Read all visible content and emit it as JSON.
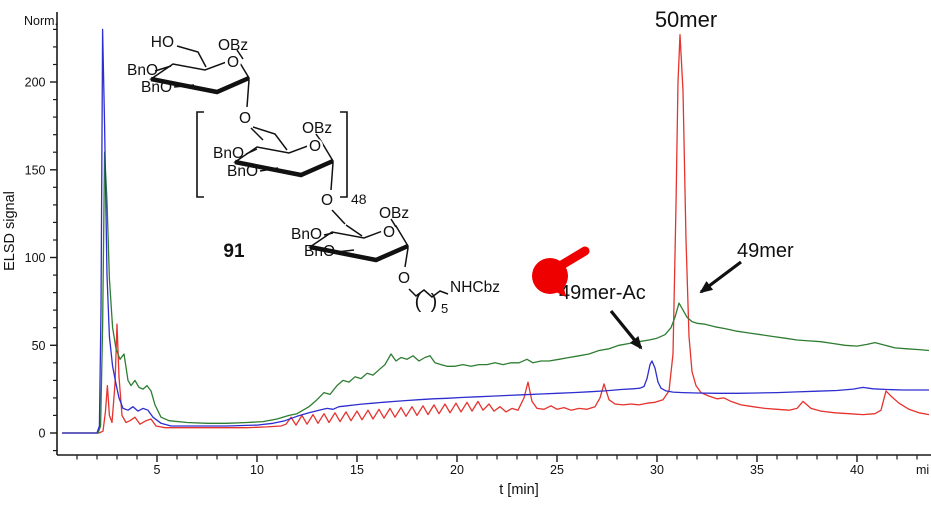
{
  "axes": {
    "norm_label": "Norm.",
    "y_label": "ELSD signal",
    "x_label": "t [min]",
    "x_unit": "mi",
    "y_ticks": [
      "200",
      "150",
      "100",
      "50",
      "0"
    ],
    "x_ticks": [
      "5",
      "10",
      "15",
      "20",
      "25",
      "30",
      "35",
      "40"
    ]
  },
  "annotations": {
    "peak_main": "50mer",
    "peak_shoulder": "49mer",
    "peak_ac": "49mer-Ac"
  },
  "structure": {
    "compound_number": "91",
    "repeat_count": "48",
    "chain_count": "5",
    "paren_open": "(",
    "paren_close": ")",
    "labels": {
      "ho": "HO",
      "r1_obz": "OBz",
      "r1_o": "O",
      "r1_bno_a": "BnO",
      "r1_bno_b": "BnO",
      "l1_o": "O",
      "r2_obz": "OBz",
      "r2_o": "O",
      "r2_bno_a": "BnO",
      "r2_bno_b": "BnO",
      "l2_o": "O",
      "r3_obz": "OBz",
      "r3_o": "O",
      "r3_bno_a": "BnO",
      "r3_bno_b": "BnO",
      "l3_o": "O",
      "nhcbz": "NHCbz"
    }
  },
  "colors": {
    "red": "#e5332e",
    "green": "#2e7d32",
    "blue": "#2d2dd0",
    "axis": "#1a1a1a",
    "norm": "#3a5a8c",
    "marker_red": "#ee0000"
  },
  "chart_data": {
    "type": "line",
    "title": "",
    "xlabel": "t [min]",
    "ylabel": "ELSD signal",
    "xlim": [
      0,
      43.7
    ],
    "ylim": [
      -10,
      245
    ],
    "grid": false,
    "legend": null,
    "x_tick_step_minor": 1,
    "y_tick_step_minor": 10,
    "series": [
      {
        "name": "trace-red",
        "color": "#e5332e",
        "points": [
          [
            0.25,
            0
          ],
          [
            1.5,
            0
          ],
          [
            2.1,
            0
          ],
          [
            2.3,
            1
          ],
          [
            2.42,
            12
          ],
          [
            2.52,
            27
          ],
          [
            2.62,
            10
          ],
          [
            2.75,
            6
          ],
          [
            2.9,
            28
          ],
          [
            3.0,
            62
          ],
          [
            3.1,
            32
          ],
          [
            3.25,
            10
          ],
          [
            3.45,
            6
          ],
          [
            3.65,
            7
          ],
          [
            3.9,
            9
          ],
          [
            4.15,
            5
          ],
          [
            4.45,
            7
          ],
          [
            4.7,
            8
          ],
          [
            4.95,
            4
          ],
          [
            5.4,
            3
          ],
          [
            6.5,
            3
          ],
          [
            8,
            3
          ],
          [
            9.5,
            3
          ],
          [
            10.5,
            3.5
          ],
          [
            11.2,
            4
          ],
          [
            11.45,
            5
          ],
          [
            11.7,
            9
          ],
          [
            11.95,
            4.5
          ],
          [
            12.25,
            10
          ],
          [
            12.5,
            5
          ],
          [
            12.8,
            10.5
          ],
          [
            13.05,
            5.5
          ],
          [
            13.35,
            11
          ],
          [
            13.6,
            6
          ],
          [
            13.9,
            11.5
          ],
          [
            14.15,
            6.5
          ],
          [
            14.45,
            12
          ],
          [
            14.7,
            7
          ],
          [
            15.0,
            12.5
          ],
          [
            15.25,
            7.5
          ],
          [
            15.55,
            13
          ],
          [
            15.8,
            8
          ],
          [
            16.1,
            13.5
          ],
          [
            16.35,
            8.5
          ],
          [
            16.65,
            14
          ],
          [
            16.9,
            9
          ],
          [
            17.2,
            14.5
          ],
          [
            17.45,
            9.5
          ],
          [
            17.75,
            15
          ],
          [
            18.0,
            10
          ],
          [
            18.3,
            15.5
          ],
          [
            18.55,
            10.5
          ],
          [
            18.85,
            16
          ],
          [
            19.1,
            11
          ],
          [
            19.4,
            16.5
          ],
          [
            19.65,
            11.5
          ],
          [
            19.95,
            17
          ],
          [
            20.2,
            12
          ],
          [
            20.5,
            17.5
          ],
          [
            20.75,
            12.5
          ],
          [
            21.05,
            18
          ],
          [
            21.3,
            13
          ],
          [
            21.6,
            16.5
          ],
          [
            21.85,
            12.5
          ],
          [
            22.15,
            15
          ],
          [
            22.45,
            12
          ],
          [
            22.75,
            14
          ],
          [
            23.05,
            13
          ],
          [
            23.35,
            20
          ],
          [
            23.55,
            29
          ],
          [
            23.75,
            18
          ],
          [
            24.0,
            14
          ],
          [
            24.35,
            13.5
          ],
          [
            24.7,
            15.5
          ],
          [
            25.0,
            13.5
          ],
          [
            25.35,
            14.5
          ],
          [
            25.7,
            13
          ],
          [
            26.1,
            14
          ],
          [
            26.5,
            13.5
          ],
          [
            26.9,
            15
          ],
          [
            27.15,
            20
          ],
          [
            27.35,
            28
          ],
          [
            27.6,
            19
          ],
          [
            27.9,
            16.5
          ],
          [
            28.3,
            16
          ],
          [
            28.7,
            16.5
          ],
          [
            29.1,
            16
          ],
          [
            29.5,
            17
          ],
          [
            29.9,
            17.5
          ],
          [
            30.3,
            19
          ],
          [
            30.6,
            24
          ],
          [
            30.8,
            45
          ],
          [
            30.95,
            130
          ],
          [
            31.05,
            200
          ],
          [
            31.15,
            227
          ],
          [
            31.3,
            195
          ],
          [
            31.45,
            110
          ],
          [
            31.6,
            55
          ],
          [
            31.75,
            35
          ],
          [
            31.95,
            27
          ],
          [
            32.2,
            23
          ],
          [
            32.6,
            21
          ],
          [
            33.0,
            19.5
          ],
          [
            33.35,
            20
          ],
          [
            33.7,
            18
          ],
          [
            34.2,
            16
          ],
          [
            34.8,
            15
          ],
          [
            35.4,
            14
          ],
          [
            36.0,
            13.5
          ],
          [
            36.6,
            13
          ],
          [
            37.0,
            14
          ],
          [
            37.3,
            18
          ],
          [
            37.7,
            14
          ],
          [
            38.2,
            12.5
          ],
          [
            38.9,
            11.5
          ],
          [
            39.6,
            11
          ],
          [
            40.3,
            10.5
          ],
          [
            40.9,
            11
          ],
          [
            41.2,
            13
          ],
          [
            41.45,
            24
          ],
          [
            41.7,
            21
          ],
          [
            42.1,
            17
          ],
          [
            42.6,
            13.5
          ],
          [
            43.1,
            11.5
          ],
          [
            43.6,
            10.5
          ]
        ]
      },
      {
        "name": "trace-green",
        "color": "#2e7d32",
        "points": [
          [
            0.25,
            0
          ],
          [
            1.5,
            0
          ],
          [
            2.05,
            0
          ],
          [
            2.18,
            4
          ],
          [
            2.28,
            60
          ],
          [
            2.38,
            160
          ],
          [
            2.5,
            132
          ],
          [
            2.62,
            88
          ],
          [
            2.78,
            60
          ],
          [
            2.95,
            48
          ],
          [
            3.15,
            42
          ],
          [
            3.35,
            45
          ],
          [
            3.55,
            30
          ],
          [
            3.7,
            27
          ],
          [
            3.9,
            30
          ],
          [
            4.1,
            26
          ],
          [
            4.3,
            25
          ],
          [
            4.5,
            27
          ],
          [
            4.7,
            24
          ],
          [
            4.9,
            16
          ],
          [
            5.2,
            9
          ],
          [
            5.6,
            7
          ],
          [
            6.5,
            6
          ],
          [
            7.5,
            5.5
          ],
          [
            8.5,
            5.5
          ],
          [
            9.5,
            6
          ],
          [
            10.3,
            6.5
          ],
          [
            11.0,
            8
          ],
          [
            11.6,
            10
          ],
          [
            12.0,
            11
          ],
          [
            12.6,
            15
          ],
          [
            13.0,
            19
          ],
          [
            13.35,
            23
          ],
          [
            13.65,
            22
          ],
          [
            14.0,
            27
          ],
          [
            14.3,
            30
          ],
          [
            14.6,
            29
          ],
          [
            14.9,
            32
          ],
          [
            15.2,
            31
          ],
          [
            15.5,
            34
          ],
          [
            15.8,
            33
          ],
          [
            16.1,
            36
          ],
          [
            16.4,
            39
          ],
          [
            16.7,
            45
          ],
          [
            16.95,
            41
          ],
          [
            17.2,
            43
          ],
          [
            17.5,
            42
          ],
          [
            17.8,
            44
          ],
          [
            18.1,
            41
          ],
          [
            18.4,
            43
          ],
          [
            18.65,
            44
          ],
          [
            18.9,
            40
          ],
          [
            19.2,
            39
          ],
          [
            19.5,
            38
          ],
          [
            19.9,
            38
          ],
          [
            20.3,
            39
          ],
          [
            20.7,
            38
          ],
          [
            21.1,
            39
          ],
          [
            21.5,
            39
          ],
          [
            21.9,
            40
          ],
          [
            22.3,
            39
          ],
          [
            22.7,
            40
          ],
          [
            23.1,
            40
          ],
          [
            23.5,
            42
          ],
          [
            23.8,
            40
          ],
          [
            24.2,
            41
          ],
          [
            24.6,
            41
          ],
          [
            25.1,
            42
          ],
          [
            25.6,
            43
          ],
          [
            26.1,
            44
          ],
          [
            26.6,
            45
          ],
          [
            27.1,
            47
          ],
          [
            27.6,
            48
          ],
          [
            28.1,
            50
          ],
          [
            28.6,
            51
          ],
          [
            29.1,
            52
          ],
          [
            29.6,
            53
          ],
          [
            30.0,
            54
          ],
          [
            30.4,
            56
          ],
          [
            30.7,
            60
          ],
          [
            30.9,
            66
          ],
          [
            31.1,
            74
          ],
          [
            31.3,
            70
          ],
          [
            31.5,
            66
          ],
          [
            31.75,
            63.5
          ],
          [
            32.0,
            62.5
          ],
          [
            32.4,
            62
          ],
          [
            32.9,
            60.5
          ],
          [
            33.4,
            59.5
          ],
          [
            34.0,
            58
          ],
          [
            34.6,
            57
          ],
          [
            35.2,
            56
          ],
          [
            35.8,
            55
          ],
          [
            36.4,
            54
          ],
          [
            37.0,
            53
          ],
          [
            37.6,
            52.5
          ],
          [
            38.2,
            52
          ],
          [
            38.8,
            51
          ],
          [
            39.4,
            50
          ],
          [
            40.0,
            49.5
          ],
          [
            40.5,
            50.5
          ],
          [
            40.9,
            51.5
          ],
          [
            41.4,
            50
          ],
          [
            41.9,
            48.5
          ],
          [
            42.5,
            48
          ],
          [
            43.1,
            47.5
          ],
          [
            43.6,
            47
          ]
        ]
      },
      {
        "name": "trace-blue",
        "color": "#2d2dd0",
        "points": [
          [
            0.25,
            0
          ],
          [
            1.5,
            0
          ],
          [
            2.0,
            0
          ],
          [
            2.12,
            4
          ],
          [
            2.2,
            70
          ],
          [
            2.28,
            230
          ],
          [
            2.38,
            175
          ],
          [
            2.5,
            90
          ],
          [
            2.62,
            55
          ],
          [
            2.78,
            38
          ],
          [
            2.95,
            28
          ],
          [
            3.1,
            20
          ],
          [
            3.3,
            14
          ],
          [
            3.55,
            13
          ],
          [
            3.8,
            15
          ],
          [
            4.05,
            12.5
          ],
          [
            4.3,
            14
          ],
          [
            4.55,
            13
          ],
          [
            4.8,
            9
          ],
          [
            5.2,
            5.5
          ],
          [
            5.7,
            4
          ],
          [
            7,
            4
          ],
          [
            8.5,
            4
          ],
          [
            10,
            4.5
          ],
          [
            10.8,
            5.5
          ],
          [
            11.4,
            7
          ],
          [
            12.0,
            9.5
          ],
          [
            12.6,
            11.5
          ],
          [
            13.1,
            13
          ],
          [
            13.5,
            14
          ],
          [
            13.8,
            13.5
          ],
          [
            14.1,
            15
          ],
          [
            14.5,
            15.5
          ],
          [
            14.9,
            16
          ],
          [
            15.3,
            16.5
          ],
          [
            15.8,
            17
          ],
          [
            16.3,
            17.5
          ],
          [
            16.9,
            18
          ],
          [
            17.5,
            18.5
          ],
          [
            18.1,
            19
          ],
          [
            18.8,
            19.5
          ],
          [
            19.5,
            19.8
          ],
          [
            20.2,
            20.2
          ],
          [
            21.0,
            20.6
          ],
          [
            21.8,
            21
          ],
          [
            22.6,
            21.4
          ],
          [
            23.4,
            21.8
          ],
          [
            24.2,
            22.2
          ],
          [
            25.0,
            22.6
          ],
          [
            25.8,
            23
          ],
          [
            26.6,
            23.5
          ],
          [
            27.4,
            24
          ],
          [
            28.2,
            24.8
          ],
          [
            28.8,
            25.2
          ],
          [
            29.15,
            25.5
          ],
          [
            29.35,
            26.5
          ],
          [
            29.5,
            31
          ],
          [
            29.65,
            39
          ],
          [
            29.75,
            41
          ],
          [
            29.9,
            37
          ],
          [
            30.05,
            29
          ],
          [
            30.2,
            25.5
          ],
          [
            30.45,
            24
          ],
          [
            30.8,
            23.3
          ],
          [
            31.3,
            23
          ],
          [
            32.0,
            22.8
          ],
          [
            33.0,
            22.6
          ],
          [
            34.0,
            22.6
          ],
          [
            35.0,
            22.8
          ],
          [
            36.0,
            23
          ],
          [
            37.0,
            23.4
          ],
          [
            38.0,
            23.8
          ],
          [
            39.0,
            24.2
          ],
          [
            39.8,
            25
          ],
          [
            40.3,
            26
          ],
          [
            40.8,
            25.2
          ],
          [
            41.5,
            24.8
          ],
          [
            42.3,
            24.5
          ],
          [
            43.1,
            24.5
          ],
          [
            43.6,
            24.5
          ]
        ]
      }
    ]
  }
}
